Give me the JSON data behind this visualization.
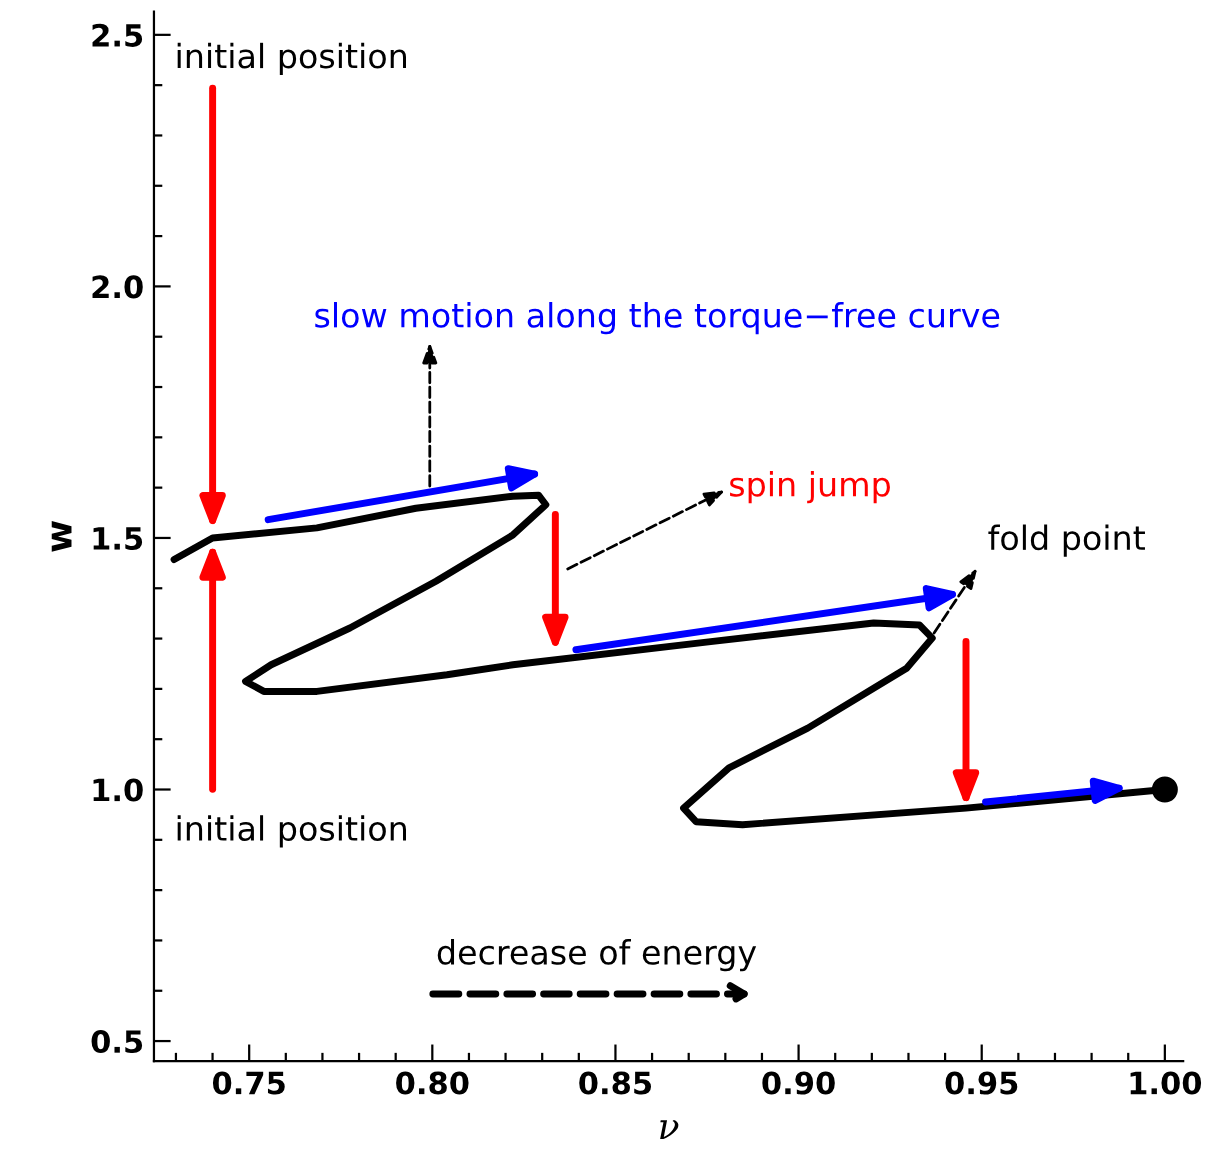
{
  "chart_data": {
    "type": "line",
    "xlabel": "ν",
    "ylabel": "w",
    "xlim": [
      0.724,
      1.005
    ],
    "ylim": [
      0.46,
      2.546
    ],
    "xticks": [
      {
        "value": 0.75,
        "label": "0.75"
      },
      {
        "value": 0.8,
        "label": "0.80"
      },
      {
        "value": 0.85,
        "label": "0.85"
      },
      {
        "value": 0.9,
        "label": "0.90"
      },
      {
        "value": 0.95,
        "label": "0.95"
      },
      {
        "value": 1.0,
        "label": "1.00"
      }
    ],
    "yticks": [
      {
        "value": 0.5,
        "label": "0.5"
      },
      {
        "value": 1.0,
        "label": "1.0"
      },
      {
        "value": 1.5,
        "label": "1.5"
      },
      {
        "value": 2.0,
        "label": "2.0"
      },
      {
        "value": 2.5,
        "label": "2.5"
      }
    ],
    "series": [
      {
        "color": "#000000",
        "x": [
          0.7295,
          0.74,
          0.7685,
          0.7955,
          0.822,
          0.829,
          0.831,
          0.822,
          0.801,
          0.7775,
          0.756,
          0.749,
          0.754,
          0.7685,
          0.804,
          0.822,
          0.876,
          0.9205,
          0.933,
          0.9365,
          0.9295,
          0.9025,
          0.881,
          0.8686,
          0.872,
          0.8847,
          0.9457,
          1.0
        ],
        "values": [
          1.457,
          1.5,
          1.52,
          1.559,
          1.583,
          1.585,
          1.566,
          1.506,
          1.414,
          1.321,
          1.248,
          1.215,
          1.195,
          1.195,
          1.228,
          1.248,
          1.294,
          1.331,
          1.327,
          1.301,
          1.241,
          1.122,
          1.043,
          0.963,
          0.936,
          0.93,
          0.963,
          1.0
        ]
      },
      {
        "type": "scatter",
        "marker": "circle",
        "color": "#000000",
        "x": [
          1.0
        ],
        "values": [
          1.0
        ]
      }
    ],
    "annotations": [
      "initial position",
      "initial position",
      "slow motion along the torque−free curve",
      "spin jump",
      "fold point",
      "decrease of energy"
    ]
  }
}
